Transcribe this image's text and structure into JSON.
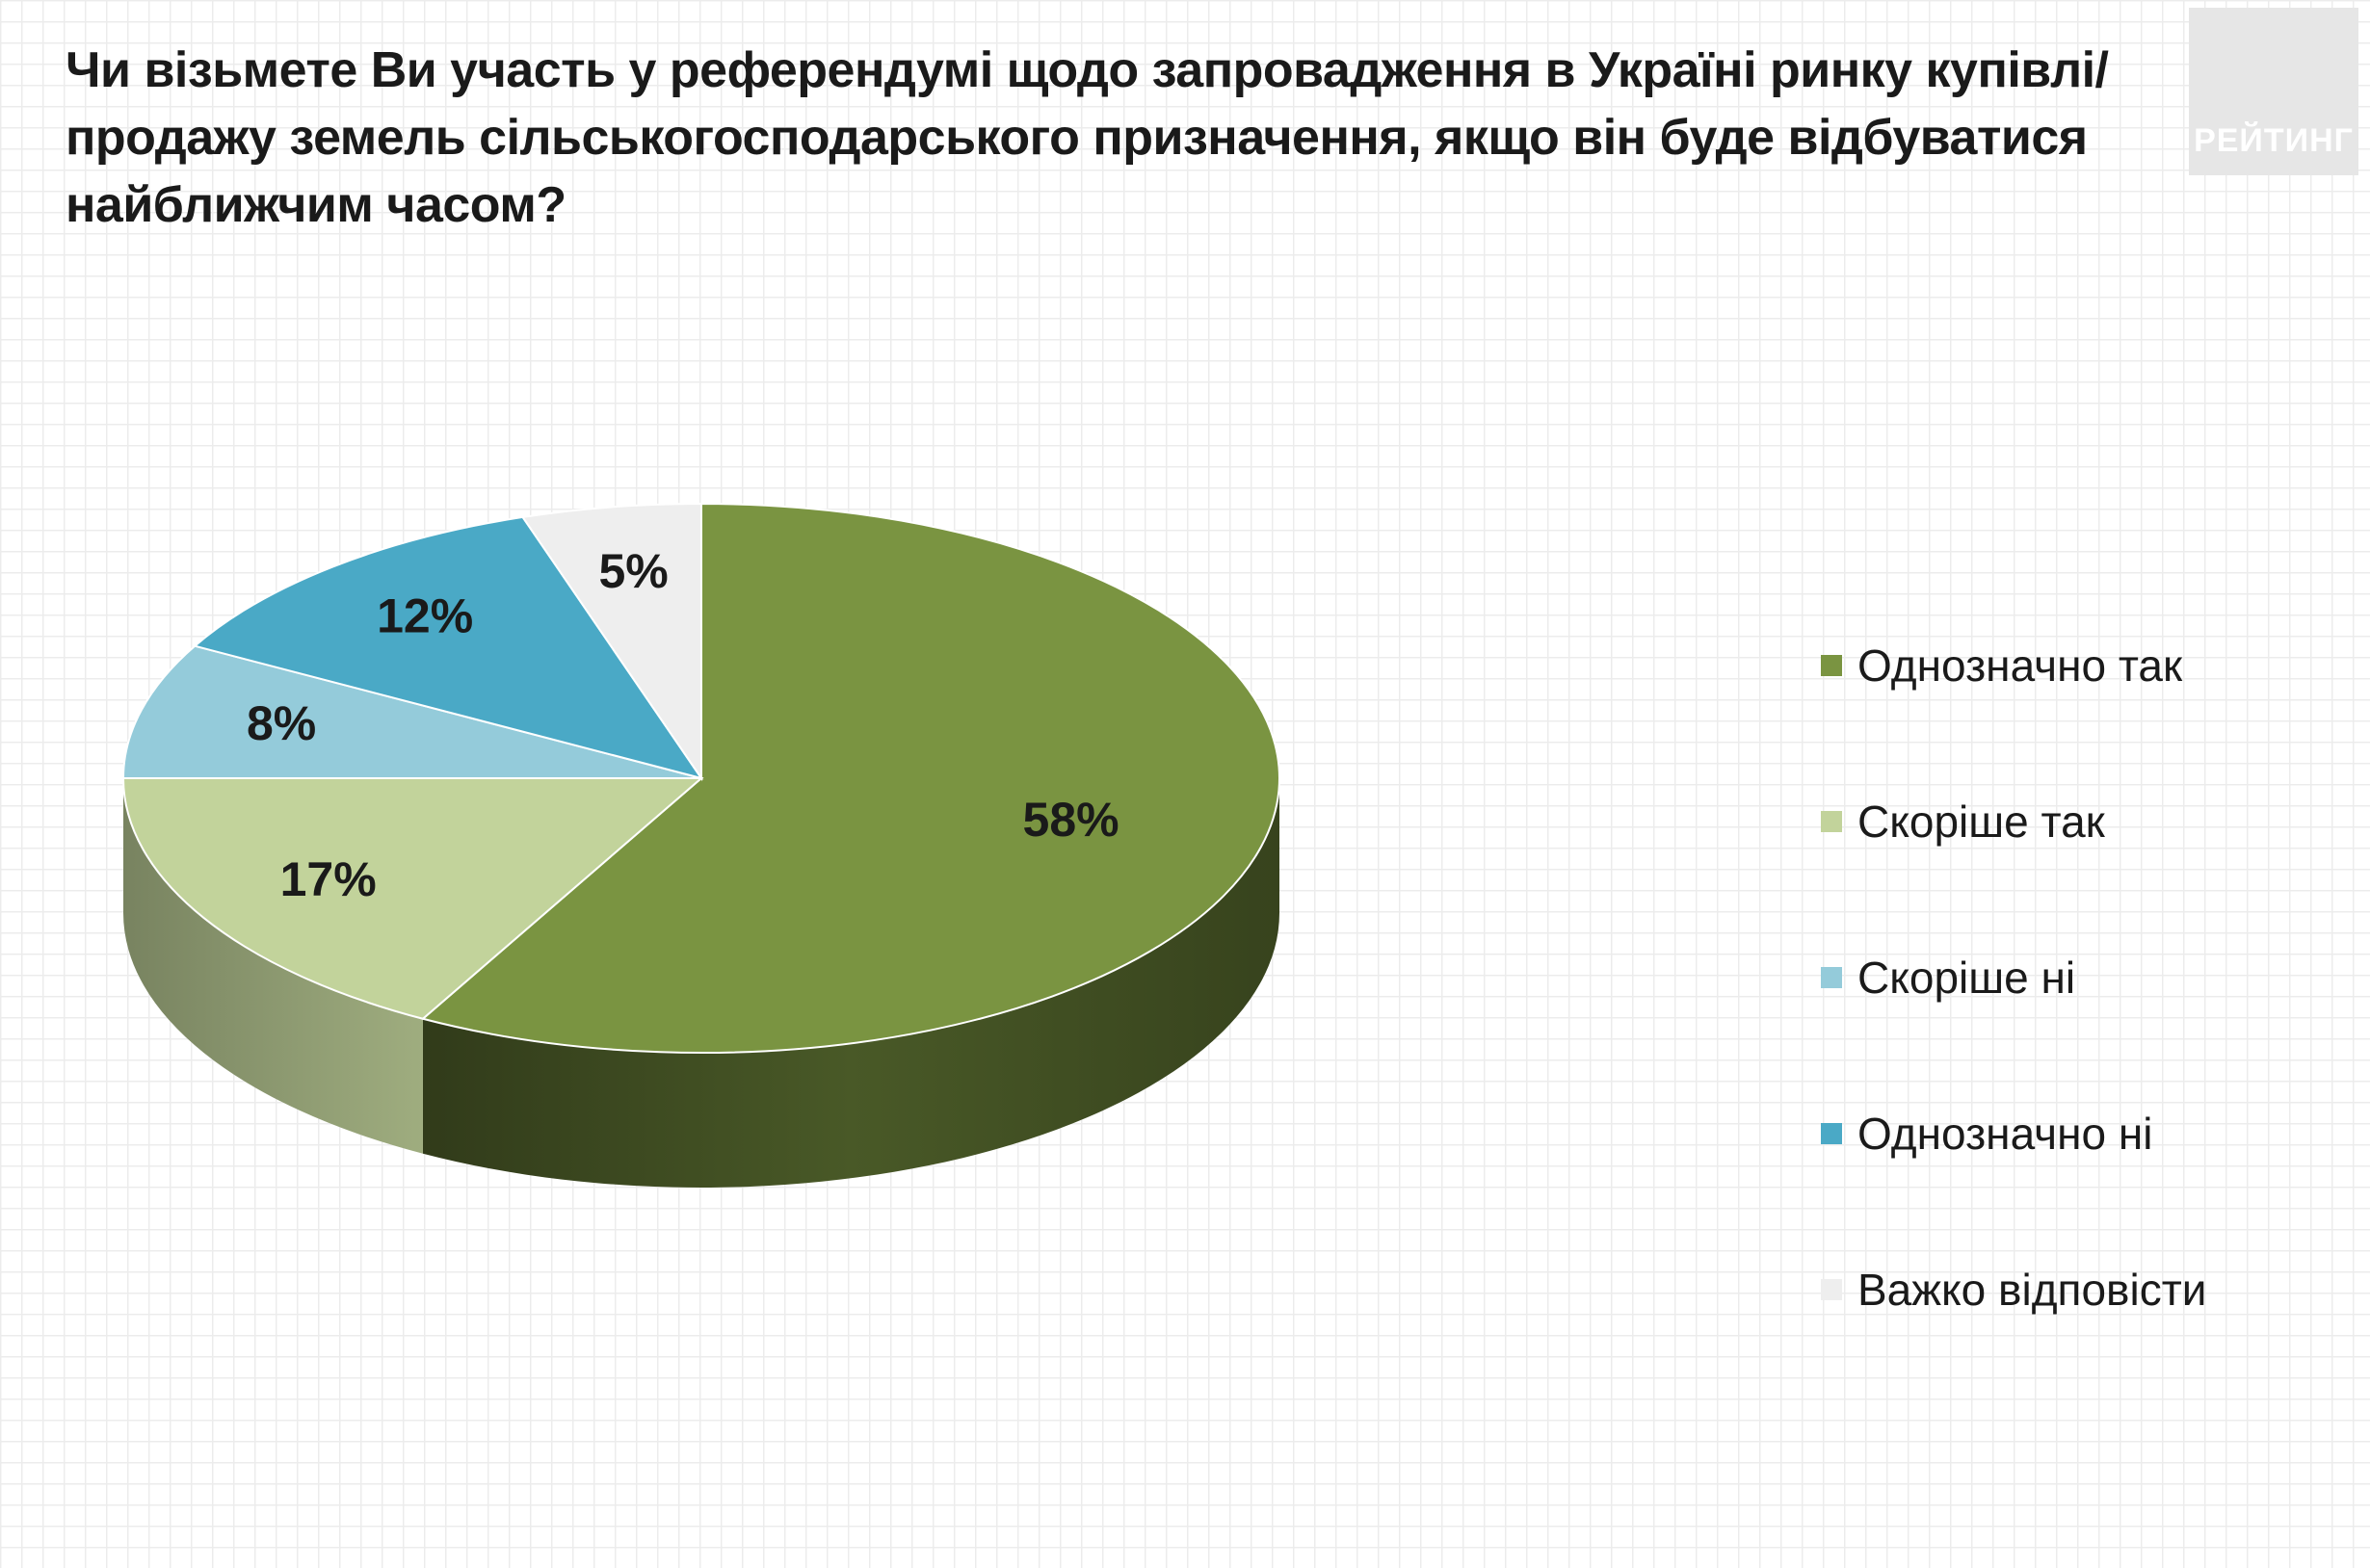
{
  "title": "Чи візьмете Ви участь у референдумі щодо запровадження в Україні ринку купівлі/продажу земель сільськогосподарського призначення, якщо він буде відбуватися найближчим часом?",
  "logo_text": "РЕЙТИНГ",
  "chart_data": {
    "type": "pie",
    "style": "3d",
    "title": "Чи візьмете Ви участь у референдумі щодо запровадження в Україні ринку купівлі/продажу земель сільськогосподарського призначення, якщо він буде відбуватися найближчим часом?",
    "categories": [
      "Однозначно так",
      "Скоріше так",
      "Скоріше ні",
      "Однозначно ні",
      "Важко відповісти"
    ],
    "values": [
      58,
      17,
      8,
      12,
      5
    ],
    "labels": [
      "58%",
      "17%",
      "8%",
      "12%",
      "5%"
    ],
    "colors": [
      "#7a9441",
      "#c2d39b",
      "#94cbda",
      "#4aa9c6",
      "#eeeeee"
    ],
    "legend_position": "right",
    "grid": true
  }
}
